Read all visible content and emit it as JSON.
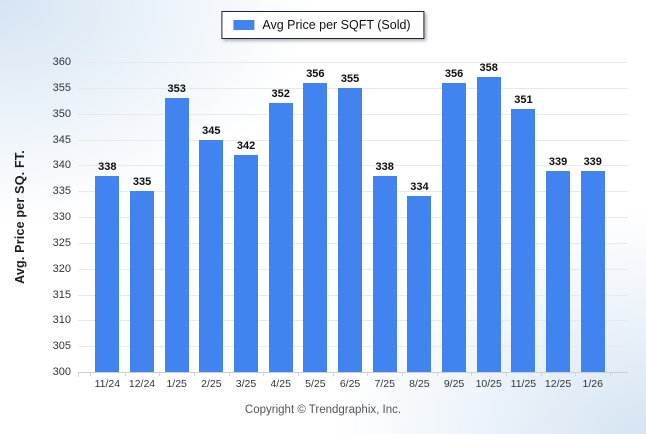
{
  "legend": {
    "label": "Avg Price per SQFT (Sold)"
  },
  "footer": {
    "copyright": "Copyright © Trendgraphix, Inc."
  },
  "chart_data": {
    "type": "bar",
    "title": "",
    "xlabel": "",
    "ylabel": "Avg. Price per SQ. FT.",
    "categories": [
      "11/24",
      "12/24",
      "1/25",
      "2/25",
      "3/25",
      "4/25",
      "5/25",
      "6/25",
      "7/25",
      "8/25",
      "9/25",
      "10/25",
      "11/25",
      "12/25",
      "1/26"
    ],
    "values": [
      338,
      335,
      353,
      345,
      342,
      352,
      356,
      355,
      338,
      334,
      356,
      358,
      351,
      339,
      339
    ],
    "series": [
      {
        "name": "Avg Price per SQFT (Sold)",
        "values": [
          338,
          335,
          353,
          345,
          342,
          352,
          356,
          355,
          338,
          334,
          356,
          358,
          351,
          339,
          339
        ]
      }
    ],
    "ylim": [
      300,
      360
    ],
    "ytick_step": 5,
    "grid": true,
    "legend_position": "top",
    "bar_color": "#4184f0",
    "grid_color": "#e9e9e9",
    "axis_color": "#cfcfcf"
  }
}
